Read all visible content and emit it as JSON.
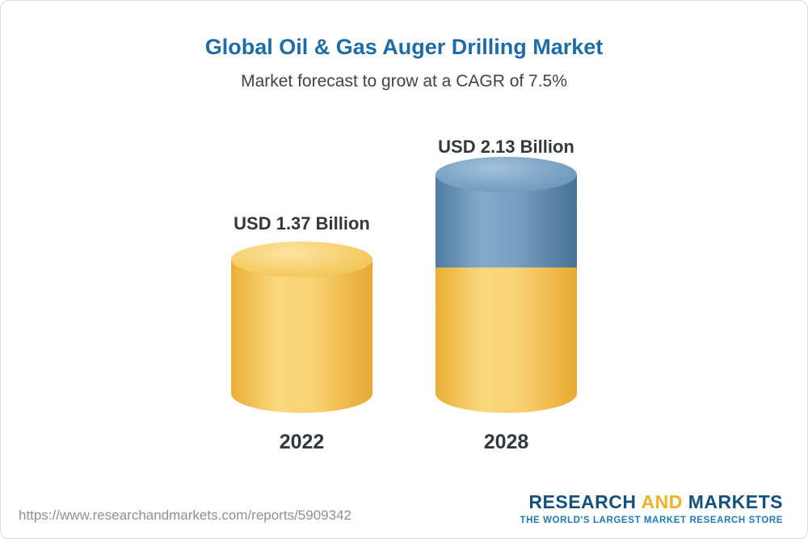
{
  "title": "Global Oil & Gas Auger Drilling Market",
  "subtitle": "Market forecast to grow at a CAGR of 7.5%",
  "chart_data": {
    "type": "bar",
    "variant": "3d-cylinder",
    "categories": [
      "2022",
      "2028"
    ],
    "values": [
      1.37,
      2.13
    ],
    "value_labels": [
      "USD 1.37 Billion",
      "USD 2.13 Billion"
    ],
    "unit": "USD Billion",
    "cagr": "7.5%",
    "title": "Global Oil & Gas Auger Drilling Market",
    "subtitle": "Market forecast to grow at a CAGR of 7.5%",
    "xlabel": "",
    "ylabel": "",
    "ylim": [
      0,
      2.3
    ],
    "legend": "none",
    "grid": false,
    "colors": {
      "bar_2022": "#f7cf6b",
      "bar_2028_base": "#f7cf6b",
      "bar_2028_growth": "#6f9cc0"
    }
  },
  "footer": {
    "url": "https://www.researchandmarkets.com/reports/5909342",
    "logo": {
      "part1": "RESEARCH",
      "part2": "AND",
      "part3": "MARKETS",
      "tagline": "THE WORLD'S LARGEST MARKET RESEARCH STORE"
    }
  },
  "colors": {
    "title_blue": "#1e6ca6",
    "text_dark": "#33383c",
    "url_gray": "#8d9196",
    "logo_navy": "#15507c",
    "logo_gold": "#edb229",
    "tagline_blue": "#1f79b8"
  }
}
